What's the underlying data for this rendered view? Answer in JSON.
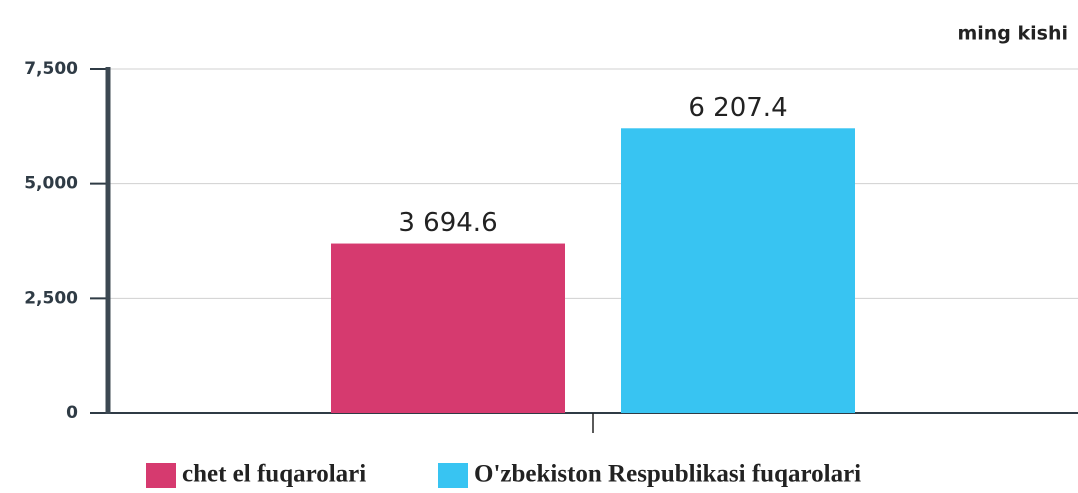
{
  "chart_data": {
    "type": "bar",
    "unit_label": "ming kishi",
    "categories": [
      null
    ],
    "series": [
      {
        "name": "chet el fuqarolari",
        "color": "#d63a6f",
        "values": [
          3694.6
        ],
        "value_labels": [
          "3 694.6"
        ]
      },
      {
        "name": "O'zbekiston Respublikasi fuqarolari",
        "color": "#38c4f2",
        "values": [
          6207.4
        ],
        "value_labels": [
          "6 207.4"
        ]
      }
    ],
    "ylim": [
      0,
      7500
    ],
    "yticks": [
      0,
      {
        "value": 2500,
        "label": "2,500"
      },
      {
        "value": 5000,
        "label": "5,000"
      },
      {
        "value": 7500,
        "label": "7,500"
      }
    ],
    "grid": true
  }
}
